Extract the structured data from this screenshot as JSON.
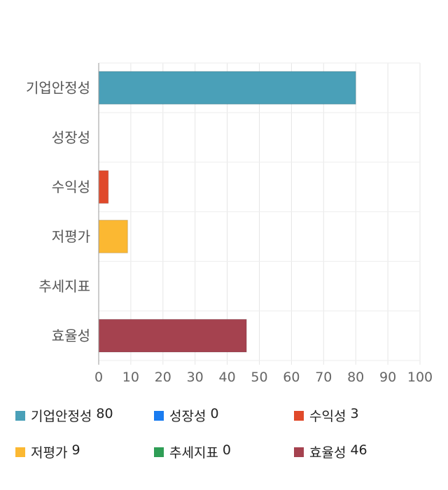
{
  "chart_data": {
    "type": "bar",
    "orientation": "horizontal",
    "categories": [
      "기업안정성",
      "성장성",
      "수익성",
      "저평가",
      "추세지표",
      "효율성"
    ],
    "values": [
      80,
      0,
      3,
      9,
      0,
      46
    ],
    "colors": [
      "#4aa0b8",
      "#1a7cf0",
      "#e0492a",
      "#fbb832",
      "#2f9e56",
      "#a5424f"
    ],
    "xlim": [
      0,
      100
    ],
    "x_ticks": [
      "0",
      "10",
      "20",
      "30",
      "40",
      "50",
      "60",
      "70",
      "80",
      "90",
      "100"
    ],
    "grid": true,
    "legend_position": "bottom"
  },
  "legend": [
    {
      "label": "기업안정성",
      "value": "80",
      "color": "#4aa0b8"
    },
    {
      "label": "성장성",
      "value": "0",
      "color": "#1a7cf0"
    },
    {
      "label": "수익성",
      "value": "3",
      "color": "#e0492a"
    },
    {
      "label": "저평가",
      "value": "9",
      "color": "#fbb832"
    },
    {
      "label": "추세지표",
      "value": "0",
      "color": "#2f9e56"
    },
    {
      "label": "효율성",
      "value": "46",
      "color": "#a5424f"
    }
  ]
}
